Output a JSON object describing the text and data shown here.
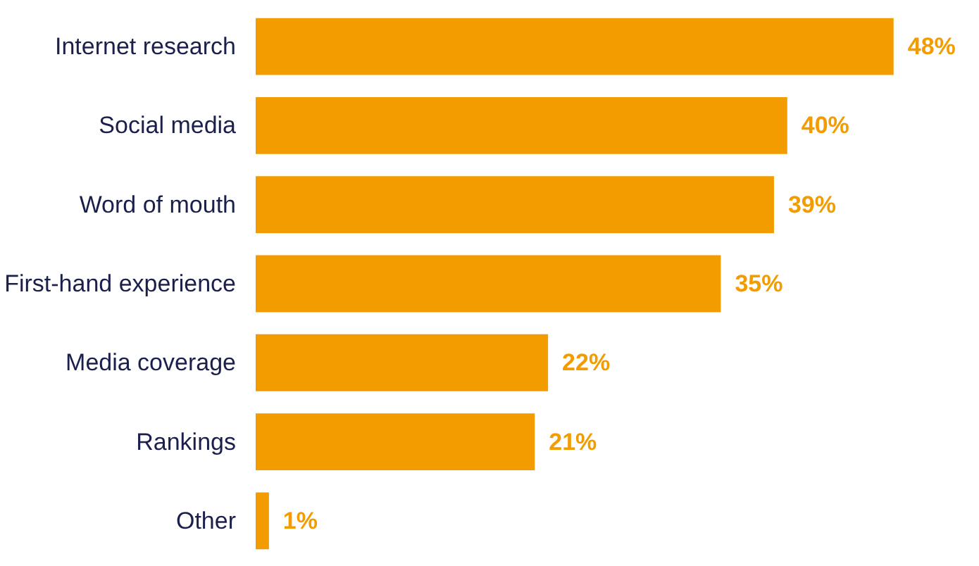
{
  "chart_data": {
    "type": "bar",
    "orientation": "horizontal",
    "categories": [
      "Internet research",
      "Social media",
      "Word of mouth",
      "First-hand experience",
      "Media coverage",
      "Rankings",
      "Other"
    ],
    "values": [
      48,
      40,
      39,
      35,
      22,
      21,
      1
    ],
    "value_labels": [
      "48%",
      "40%",
      "39%",
      "35%",
      "22%",
      "21%",
      "1%"
    ],
    "color": "#f39c00"
  }
}
